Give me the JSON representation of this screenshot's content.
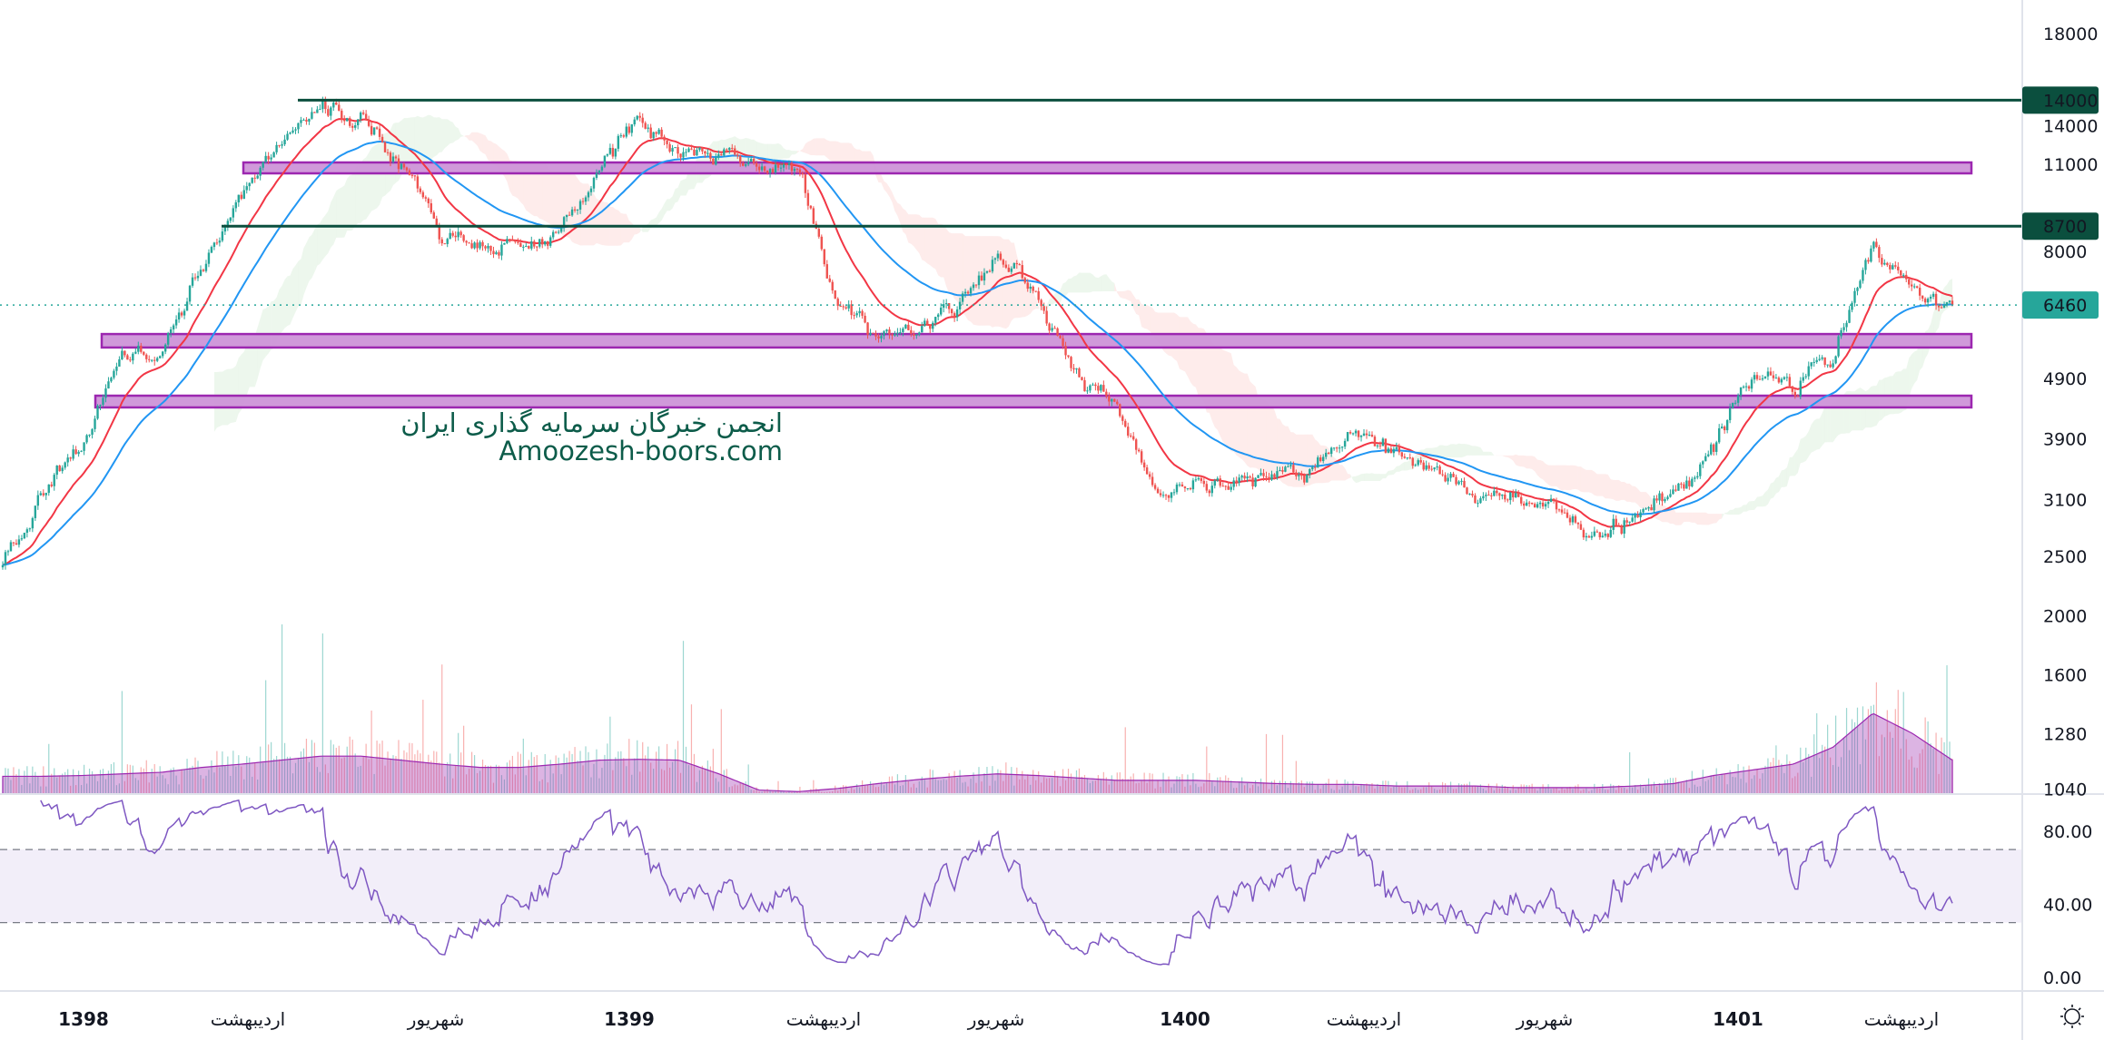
{
  "watermark": {
    "line1": "انجمن خبرگان سرمایه گذاری ایران",
    "line2": "Amoozesh-boors.com"
  },
  "colors": {
    "up": "#26a69a",
    "down": "#ef5350",
    "ema_fast": "#f23645",
    "ema_slow": "#2196f3",
    "level_line": "#0b4f3e",
    "zone_fill": "#ce93d8",
    "zone_border": "#9c27b0",
    "volume_ma": "#9c27b0",
    "rsi": "#7e57c2",
    "last_price": "#26a69a"
  },
  "settings_icon": "sun-gear-icon",
  "chart_data": {
    "type": "candlestick",
    "scale": "log",
    "price_axis_ticks": [
      18000,
      14000,
      11000,
      8000,
      4900,
      3900,
      3100,
      2500,
      2000,
      1600,
      1280,
      1040
    ],
    "last_price": 6460,
    "levels": [
      {
        "price": 14000,
        "label": "14000"
      },
      {
        "price": 8700,
        "label": "8700"
      }
    ],
    "zones": [
      {
        "from": 10620,
        "to": 11066
      },
      {
        "from": 5503,
        "to": 5790
      },
      {
        "from": 4389,
        "to": 4588
      }
    ],
    "x_axis_labels": [
      "1398",
      "اردیبهشت",
      "شهریور",
      "1399",
      "اردیبهشت",
      "شهریور",
      "1400",
      "اردیبهشت",
      "شهریور",
      "1401",
      "اردیبهشت"
    ],
    "close_path_approx": [
      2400,
      3120,
      3840,
      5265,
      5330,
      7243,
      9967,
      12072,
      13500,
      12900,
      11400,
      8420,
      8136,
      8020,
      8540,
      10600,
      13600,
      11450,
      11100,
      10900,
      10700,
      6500,
      5800,
      5880,
      6400,
      8000,
      6440,
      5030,
      4310,
      3140,
      3300,
      3300,
      3300,
      3485,
      4040,
      3650,
      3515,
      3100,
      3117,
      2984,
      2630,
      2910,
      3200,
      3793,
      4950,
      4730,
      5480,
      8140,
      6710,
      6460
    ],
    "volume_ma_relative": [
      22,
      22,
      23,
      25,
      27,
      33,
      37,
      42,
      47,
      47,
      42,
      37,
      33,
      33,
      37,
      42,
      43,
      42,
      25,
      5,
      3,
      7,
      13,
      18,
      22,
      25,
      23,
      20,
      17,
      17,
      17,
      15,
      13,
      12,
      12,
      10,
      10,
      10,
      8,
      8,
      8,
      10,
      13,
      23,
      30,
      37,
      58,
      100,
      75,
      42
    ],
    "rsi": {
      "ticks": [
        80.0,
        40.0,
        0.0
      ],
      "upper": 70,
      "lower": 30,
      "period": 14,
      "axis_labels": [
        "80.00",
        "40.00",
        "0.00"
      ]
    }
  }
}
